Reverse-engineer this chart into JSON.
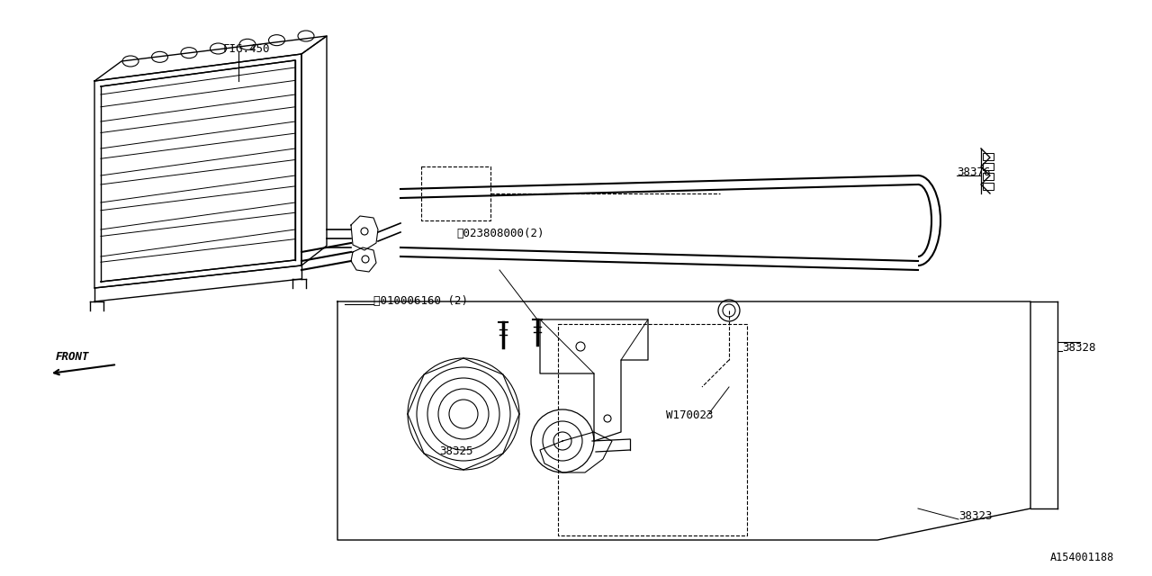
{
  "background_color": "#ffffff",
  "line_color": "#000000",
  "fig_width": 12.8,
  "fig_height": 6.4,
  "watermark": "A154001188",
  "label_FIG450": "FIG.450",
  "label_N": "Ⓝ023808000(2)",
  "label_B": "Ⓑ010006160 (2)",
  "label_38376": "38376",
  "label_38328": "38328",
  "label_38325": "38325",
  "label_W": "W170023",
  "label_38323": "38323",
  "label_FRONT": "FRONT"
}
